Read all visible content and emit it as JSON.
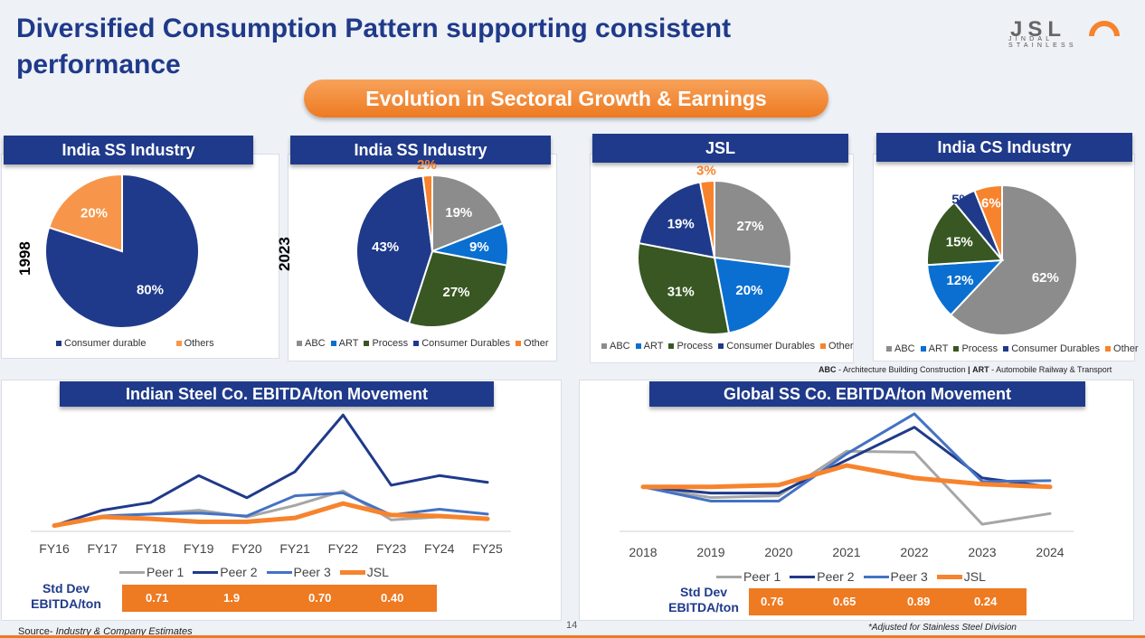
{
  "page": {
    "title": "Diversified Consumption Pattern supporting consistent performance",
    "banner": "Evolution in Sectoral Growth & Earnings",
    "logo_text": "JSL",
    "logo_sub": "JINDAL STAINLESS",
    "page_number": "14",
    "source_prefix": "Source-",
    "source_text": "Industry & Company Estimates",
    "abbrev_abc": "ABC",
    "abbrev_abc_text": "- Architecture Building Construction",
    "abbrev_sep": "|",
    "abbrev_art": "ART",
    "abbrev_art_text": "- Automobile Railway & Transport",
    "adjusted_note": "*Adjusted for Stainless Steel Division"
  },
  "pies": [
    {
      "title": "India SS Industry",
      "year": "1998",
      "legend": [
        "Consumer durable",
        "Others"
      ],
      "slices": [
        {
          "label": "Consumer durable",
          "value": 80,
          "text": "80%",
          "color": "#1f3a8a"
        },
        {
          "label": "Others",
          "value": 20,
          "text": "20%",
          "color": "#f7964a"
        }
      ]
    },
    {
      "title": "India SS Industry",
      "year": "2023",
      "legend": [
        "ABC",
        "ART",
        "Process",
        "Consumer Durables",
        "Other"
      ],
      "slices": [
        {
          "label": "ABC",
          "value": 19,
          "text": "19%",
          "color": "#8c8c8c"
        },
        {
          "label": "ART",
          "value": 9,
          "text": "9%",
          "color": "#0a6fd1"
        },
        {
          "label": "Process",
          "value": 27,
          "text": "27%",
          "color": "#385723"
        },
        {
          "label": "Consumer Durables",
          "value": 43,
          "text": "43%",
          "color": "#1f3a8a"
        },
        {
          "label": "Other",
          "value": 2,
          "text": "2%",
          "color": "#f7832d"
        }
      ]
    },
    {
      "title": "JSL",
      "year": "",
      "legend": [
        "ABC",
        "ART",
        "Process",
        "Consumer Durables",
        "Other"
      ],
      "slices": [
        {
          "label": "ABC",
          "value": 27,
          "text": "27%",
          "color": "#8c8c8c"
        },
        {
          "label": "ART",
          "value": 20,
          "text": "20%",
          "color": "#0a6fd1"
        },
        {
          "label": "Process",
          "value": 31,
          "text": "31%",
          "color": "#385723"
        },
        {
          "label": "Consumer Durables",
          "value": 19,
          "text": "19%",
          "color": "#1f3a8a"
        },
        {
          "label": "Other",
          "value": 3,
          "text": "3%",
          "color": "#f7832d"
        }
      ]
    },
    {
      "title": "India CS Industry",
      "year": "",
      "legend": [
        "ABC",
        "ART",
        "Process",
        "Consumer Durables",
        "Other"
      ],
      "slices": [
        {
          "label": "ABC",
          "value": 62,
          "text": "62%",
          "color": "#8c8c8c"
        },
        {
          "label": "ART",
          "value": 12,
          "text": "12%",
          "color": "#0a6fd1"
        },
        {
          "label": "Process",
          "value": 15,
          "text": "15%",
          "color": "#385723"
        },
        {
          "label": "Consumer Durables",
          "value": 5,
          "text": "5%",
          "color": "#1f3a8a"
        },
        {
          "label": "Other",
          "value": 6,
          "text": "6%",
          "color": "#f7832d"
        }
      ]
    }
  ],
  "chart_data": [
    {
      "type": "line",
      "title": "Indian Steel Co. EBITDA/ton Movement",
      "categories": [
        "FY16",
        "FY17",
        "FY18",
        "FY19",
        "FY20",
        "FY21",
        "FY22",
        "FY23",
        "FY24",
        "FY25"
      ],
      "ylim": [
        0,
        100
      ],
      "series": [
        {
          "name": "Peer 1",
          "color": "#a6a6a6",
          "values": [
            6,
            15,
            18,
            22,
            15,
            27,
            42,
            12,
            15,
            13
          ]
        },
        {
          "name": "Peer 2",
          "color": "#1f3a8a",
          "values": [
            6,
            22,
            30,
            58,
            35,
            62,
            121,
            48,
            58,
            51
          ]
        },
        {
          "name": "Peer 3",
          "color": "#4472c4",
          "values": [
            6,
            16,
            18,
            19,
            16,
            37,
            40,
            17,
            23,
            18
          ]
        },
        {
          "name": "JSL",
          "color": "#f7832d",
          "values": [
            6,
            15,
            13,
            10,
            10,
            14,
            29,
            17,
            16,
            13
          ]
        }
      ],
      "std_dev_label": "Std Dev EBITDA/ton",
      "std_dev": [
        "0.71",
        "1.9",
        "0.70",
        "0.40"
      ]
    },
    {
      "type": "line",
      "title": "Global SS Co. EBITDA/ton Movement",
      "categories": [
        "2018",
        "2019",
        "2020",
        "2021",
        "2022",
        "2023",
        "2024"
      ],
      "ylim": [
        0,
        100
      ],
      "series": [
        {
          "name": "Peer 1",
          "color": "#a6a6a6",
          "values": [
            40,
            28,
            30,
            80,
            79,
            -2,
            10
          ]
        },
        {
          "name": "Peer 2",
          "color": "#1f3a8a",
          "values": [
            40,
            33,
            33,
            70,
            107,
            50,
            40
          ]
        },
        {
          "name": "Peer 3",
          "color": "#4472c4",
          "values": [
            40,
            24,
            24,
            77,
            122,
            46,
            47
          ]
        },
        {
          "name": "JSL",
          "color": "#f7832d",
          "values": [
            40,
            40,
            42,
            64,
            50,
            43,
            40
          ]
        }
      ],
      "std_dev_label": "Std Dev EBITDA/ton",
      "std_dev": [
        "0.76",
        "0.65",
        "0.89",
        "0.24"
      ]
    }
  ]
}
